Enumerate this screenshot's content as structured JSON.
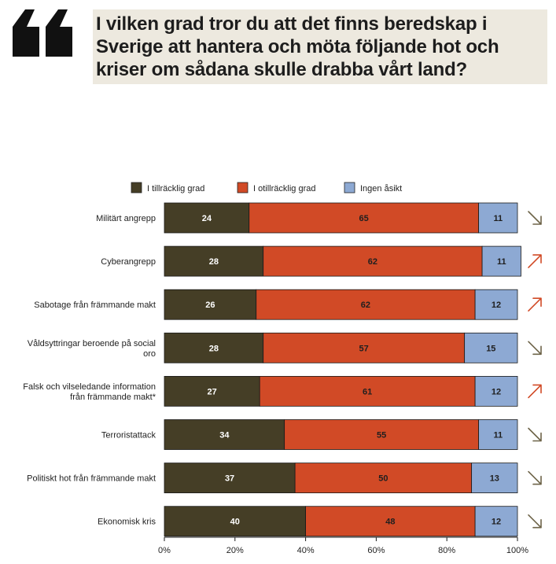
{
  "header": {
    "quote_icon": "quote-mark-icon",
    "headline": "I vilken grad tror du att det finns beredskap i Sverige att hantera och möta följande hot och kriser om sådana skulle drabba vårt land?"
  },
  "chart_data": {
    "type": "bar",
    "orientation": "horizontal",
    "stacked": true,
    "legend_position": "top",
    "categories": [
      [
        "Militärt angrepp"
      ],
      [
        "Cyberangrepp"
      ],
      [
        "Sabotage från främmande makt"
      ],
      [
        "Våldsyttringar beroende på social",
        "oro"
      ],
      [
        "Falsk och vilseledande information",
        "från främmande makt*"
      ],
      [
        "Terroristattack"
      ],
      [
        "Politiskt hot från främmande makt"
      ],
      [
        "Ekonomisk kris"
      ]
    ],
    "series": [
      {
        "name": "I tillräcklig grad",
        "color": "#453e26",
        "label_color": "#ffffff",
        "values": [
          24,
          28,
          26,
          28,
          27,
          34,
          37,
          40
        ]
      },
      {
        "name": "I otillräcklig grad",
        "color": "#d14a26",
        "label_color": "#1f1f1f",
        "values": [
          65,
          62,
          62,
          57,
          61,
          55,
          50,
          48
        ]
      },
      {
        "name": "Ingen åsikt",
        "color": "#8da9d3",
        "label_color": "#1f1f1f",
        "values": [
          11,
          11,
          12,
          15,
          12,
          11,
          13,
          12
        ]
      }
    ],
    "trends": [
      "down",
      "up",
      "up",
      "down",
      "up",
      "down",
      "down",
      "down"
    ],
    "trend_colors": {
      "up": "#d14a26",
      "down": "#6e6449"
    },
    "xlim": [
      0,
      100
    ],
    "xticks": [
      0,
      20,
      40,
      60,
      80,
      100
    ],
    "xtick_labels": [
      "0%",
      "20%",
      "40%",
      "60%",
      "80%",
      "100%"
    ]
  }
}
